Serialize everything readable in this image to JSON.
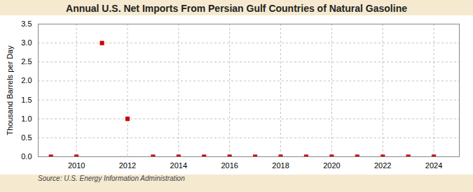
{
  "chart_data": {
    "type": "scatter",
    "title": "Annual U.S. Net Imports From Persian Gulf Countries of Natural Gasoline",
    "ylabel": "Thousand Barrels per Day",
    "source": "Source: U.S. Energy Information Administration",
    "x": [
      2009,
      2010,
      2011,
      2012,
      2013,
      2014,
      2015,
      2016,
      2017,
      2018,
      2019,
      2020,
      2021,
      2022,
      2023,
      2024
    ],
    "values": [
      0.0,
      0.0,
      3.0,
      1.0,
      0.0,
      0.0,
      0.0,
      0.0,
      0.0,
      0.0,
      0.0,
      0.0,
      0.0,
      0.0,
      0.0,
      0.0
    ],
    "color": "#cc0000",
    "marker": "square",
    "xlim": [
      2008.5,
      2025
    ],
    "ylim": [
      0.0,
      3.5
    ],
    "xticks": [
      2010,
      2012,
      2014,
      2016,
      2018,
      2020,
      2022,
      2024
    ],
    "yticks": [
      {
        "value": 0.0,
        "label": "0.0"
      },
      0.5,
      {
        "value": 1.0,
        "label": "1.0"
      },
      1.5,
      {
        "value": 2.0,
        "label": "2.0"
      },
      2.5,
      {
        "value": 3.0,
        "label": "3.0"
      },
      3.5
    ],
    "grid": true
  }
}
